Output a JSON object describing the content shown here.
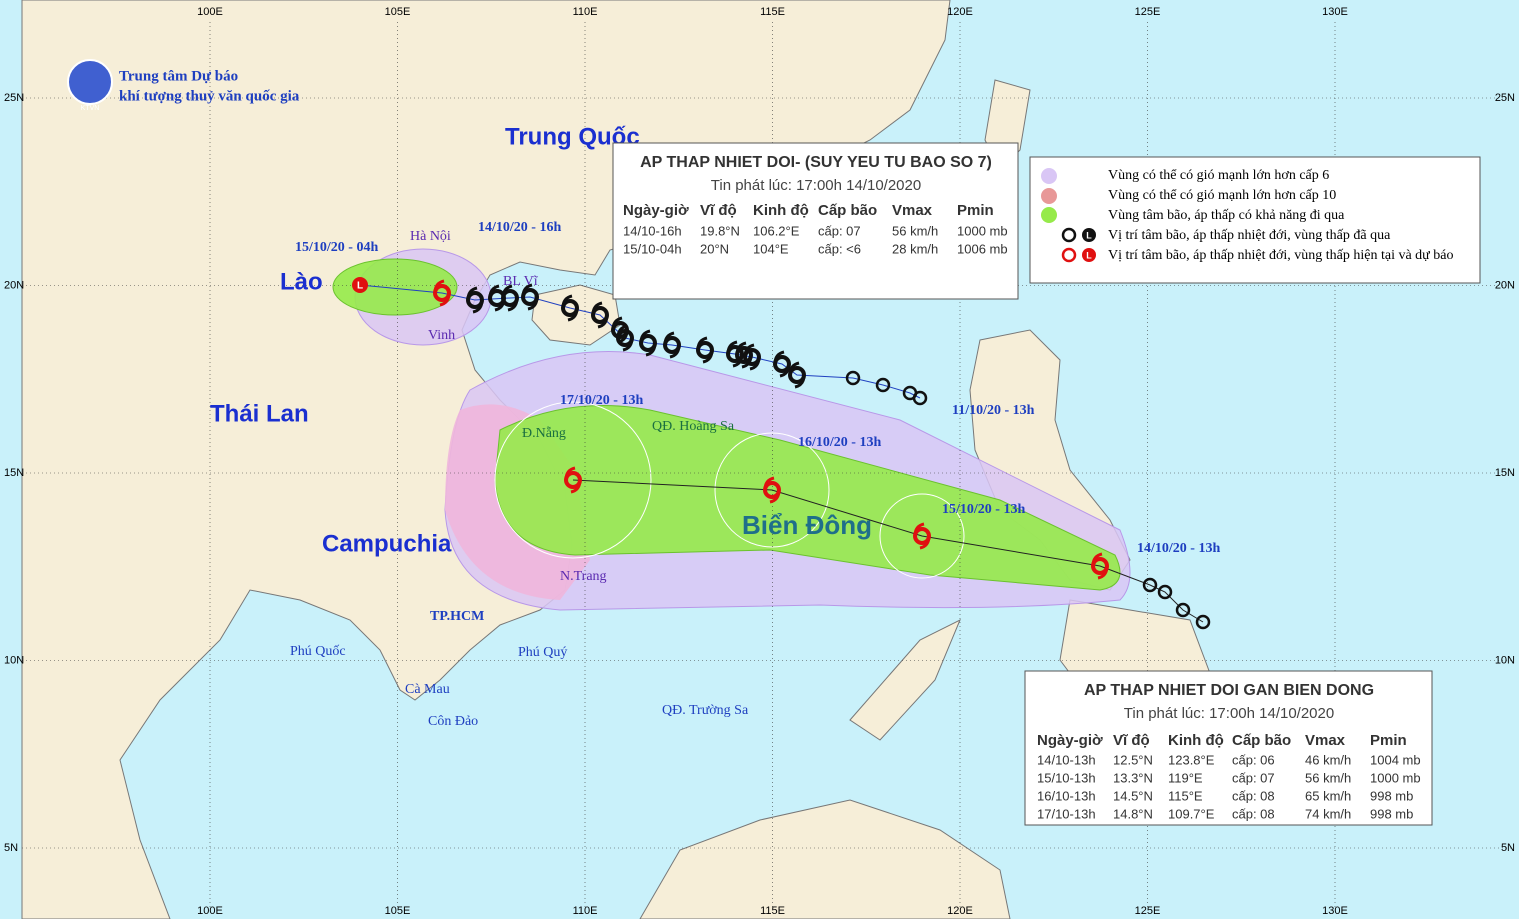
{
  "logo": {
    "line1": "Trung tâm Dự báo",
    "line2": "khí tượng thuỷ văn quốc gia",
    "abbr": "KTVN"
  },
  "grid": {
    "lon_labels": [
      "100E",
      "105E",
      "110E",
      "115E",
      "120E",
      "125E",
      "130E"
    ],
    "lat_labels": [
      "25N",
      "20N",
      "15N",
      "10N",
      "5N"
    ]
  },
  "places": [
    "Trung Quốc",
    "Lào",
    "Thái Lan",
    "Campuchia",
    "Biển Đông",
    "Hà Nội",
    "BL Vĩ",
    "Vinh",
    "Đ.Nẵng",
    "QĐ. Hoàng Sa",
    "N.Trang",
    "TP.HCM",
    "Phú Quốc",
    "Phú Quý",
    "Cà Mau",
    "Côn Đảo",
    "QĐ. Trường Sa"
  ],
  "track_labels": [
    "15/10/20 - 04h",
    "14/10/20 - 16h",
    "17/10/20 - 13h",
    "16/10/20 - 13h",
    "15/10/20 - 13h",
    "14/10/20 - 13h",
    "11/10/20 - 13h"
  ],
  "low_symbol": "L",
  "panel_past": {
    "title": "AP THAP NHIET DOI- (SUY YEU TU BAO SO 7)",
    "issued": "Tin phát lúc: 17:00h 14/10/2020",
    "headers": [
      "Ngày-giờ",
      "Vĩ độ",
      "Kinh độ",
      "Cấp bão",
      "Vmax",
      "Pmin"
    ],
    "rows": [
      [
        "14/10-16h",
        "19.8°N",
        "106.2°E",
        "cấp: 07",
        "56 km/h",
        "1000 mb"
      ],
      [
        "15/10-04h",
        "20°N",
        "104°E",
        "cấp: <6",
        "28 km/h",
        "1006 mb"
      ]
    ]
  },
  "legend": [
    "Vùng có thể có gió mạnh lớn hơn cấp 6",
    "Vùng có thể có gió mạnh lớn hơn cấp 10",
    "Vùng tâm bão, áp thấp có khả năng đi qua",
    "Vị trí tâm bão, áp thấp nhiệt đới, vùng thấp đã qua",
    "Vị trí tâm bão, áp thấp nhiệt đới, vùng thấp hiện tại và dự báo"
  ],
  "panel_current": {
    "title": "AP THAP NHIET DOI GAN BIEN DONG",
    "issued": "Tin phát lúc: 17:00h 14/10/2020",
    "headers": [
      "Ngày-giờ",
      "Vĩ độ",
      "Kinh độ",
      "Cấp bão",
      "Vmax",
      "Pmin"
    ],
    "rows": [
      [
        "14/10-13h",
        "12.5°N",
        "123.8°E",
        "cấp: 06",
        "46 km/h",
        "1004 mb"
      ],
      [
        "15/10-13h",
        "13.3°N",
        "119°E",
        "cấp: 07",
        "56 km/h",
        "1000 mb"
      ],
      [
        "16/10-13h",
        "14.5°N",
        "115°E",
        "cấp: 08",
        "65 km/h",
        "998 mb"
      ],
      [
        "17/10-13h",
        "14.8°N",
        "109.7°E",
        "cấp: 08",
        "74 km/h",
        "998 mb"
      ]
    ]
  }
}
